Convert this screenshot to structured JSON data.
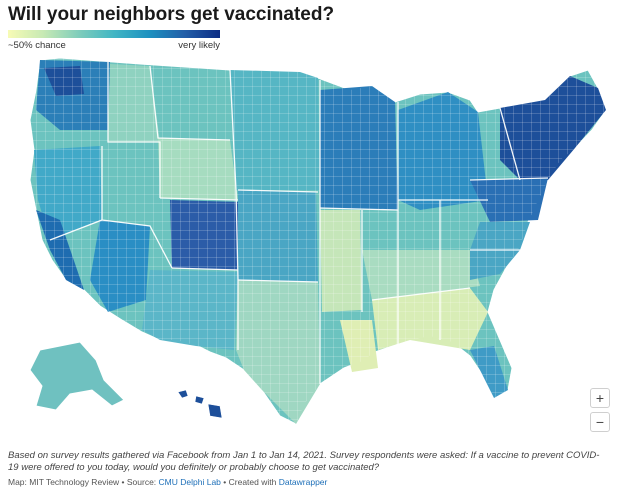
{
  "title": "Will your neighbors get vaccinated?",
  "legend": {
    "low_label": "~50% chance",
    "high_label": "very likely",
    "colors": [
      "#f7fbb5",
      "#c7e9b4",
      "#7fcdbb",
      "#41b6c4",
      "#1d91c0",
      "#225ea8",
      "#0c2c84"
    ]
  },
  "zoom": {
    "in_label": "+",
    "out_label": "−"
  },
  "footnote": "Based on survey results gathered via Facebook from Jan 1 to Jan 14, 2021. Survey respondents were asked: If a vaccine to prevent COVID-19 were offered to you today, would you definitely or probably choose to get vaccinated?",
  "credits": {
    "prefix": "Map: MIT Technology Review • Source: ",
    "source_link": "CMU Delphi Lab",
    "middle": " • Created with ",
    "tool_link": "Datawrapper"
  }
}
